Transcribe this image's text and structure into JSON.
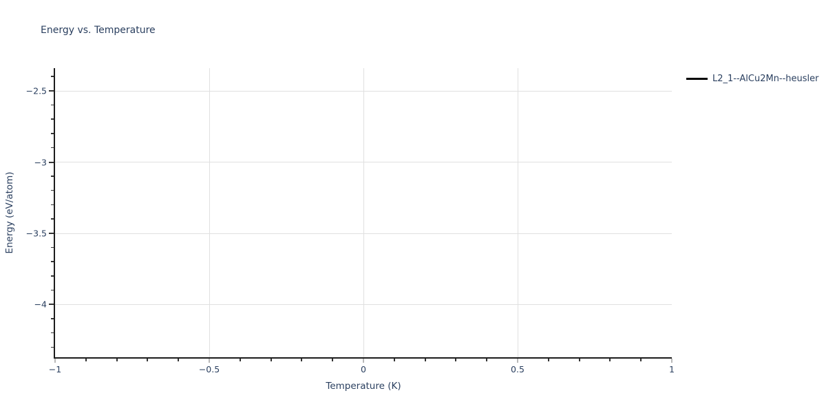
{
  "page": {
    "background": "#ffffff"
  },
  "chart_data": {
    "type": "line",
    "title": "Energy vs. Temperature",
    "xlabel": "Temperature (K)",
    "ylabel": "Energy (eV/atom)",
    "xlim": [
      -1,
      1
    ],
    "ylim": [
      -4.37,
      -2.34
    ],
    "grid": true,
    "legend_position": "outside-top-right",
    "x_ticks": [
      {
        "value": -1,
        "label": "−1"
      },
      {
        "value": -0.5,
        "label": "−0.5"
      },
      {
        "value": 0,
        "label": "0"
      },
      {
        "value": 0.5,
        "label": "0.5"
      },
      {
        "value": 1,
        "label": "1"
      }
    ],
    "y_ticks": [
      {
        "value": -2.5,
        "label": "−2.5"
      },
      {
        "value": -3,
        "label": "−3"
      },
      {
        "value": -3.5,
        "label": "−3.5"
      },
      {
        "value": -4,
        "label": "−4"
      }
    ],
    "x_minor_tick_step": 0.1,
    "y_minor_tick_step": 0.1,
    "major_tick_interval": 0.5,
    "series": [
      {
        "name": "L2_1--AlCu2Mn--heusler",
        "color": "#000000",
        "x": [],
        "y": []
      }
    ]
  },
  "colors": {
    "background": "#ffffff",
    "text": "#2a3f5f",
    "axis_line": "#1c1c1c",
    "grid": "#e0e0e0",
    "x_major_tick": "#b8b8b8",
    "y_major_tick": "#333333",
    "minor_tick": "#333333",
    "legend_line": "#000000"
  }
}
